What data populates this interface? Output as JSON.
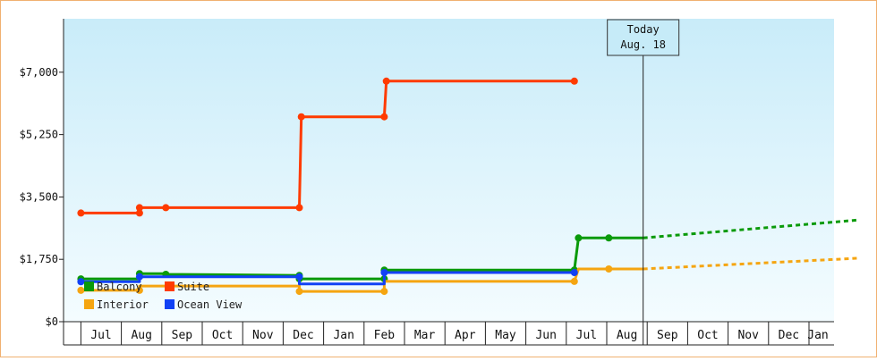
{
  "chart_data": {
    "type": "line",
    "title": "",
    "xlabel": "",
    "ylabel": "",
    "ylim": [
      0,
      8500
    ],
    "yticks": [
      0,
      1750,
      3500,
      5250,
      7000
    ],
    "ytick_labels": [
      "$0",
      "$1,750",
      "$3,500",
      "$5,250",
      "$7,000"
    ],
    "months": [
      "Jul",
      "Aug",
      "Sep",
      "Oct",
      "Nov",
      "Dec",
      "Jan",
      "Feb",
      "Mar",
      "Apr",
      "May",
      "Jun",
      "Jul",
      "Aug",
      "Sep",
      "Oct",
      "Nov",
      "Dec",
      "Jan"
    ],
    "today_label_line1": "Today",
    "today_label_line2": "Aug. 18",
    "today_x": 13.4,
    "legend_position": "bottom-left",
    "grid": false,
    "background": [
      "#c9ecf9",
      "#f4fcff"
    ],
    "series": [
      {
        "name": "Balcony",
        "color": "#0a9a0a",
        "points": [
          [
            -0.5,
            1200
          ],
          [
            0.95,
            1200
          ],
          [
            0.95,
            1350
          ],
          [
            1.6,
            1350
          ],
          [
            1.6,
            1330
          ],
          [
            4.9,
            1300
          ],
          [
            4.9,
            1200
          ],
          [
            7.0,
            1200
          ],
          [
            7.0,
            1450
          ],
          [
            11.7,
            1450
          ],
          [
            11.8,
            2350
          ],
          [
            12.55,
            2350
          ],
          [
            13.4,
            2350
          ]
        ],
        "markers": [
          [
            -0.5,
            1200
          ],
          [
            0.95,
            1350
          ],
          [
            1.6,
            1330
          ],
          [
            4.9,
            1300
          ],
          [
            4.9,
            1200
          ],
          [
            7.0,
            1200
          ],
          [
            7.0,
            1450
          ],
          [
            11.7,
            1450
          ],
          [
            11.8,
            2350
          ],
          [
            12.55,
            2350
          ]
        ],
        "forecast": [
          [
            13.4,
            2350
          ],
          [
            18.7,
            2850
          ]
        ]
      },
      {
        "name": "Suite",
        "color": "#ff3b00",
        "points": [
          [
            -0.5,
            3050
          ],
          [
            0.95,
            3050
          ],
          [
            0.95,
            3200
          ],
          [
            1.6,
            3200
          ],
          [
            4.9,
            3200
          ],
          [
            4.95,
            5750
          ],
          [
            7.0,
            5750
          ],
          [
            7.05,
            6750
          ],
          [
            11.7,
            6750
          ]
        ],
        "markers": [
          [
            -0.5,
            3050
          ],
          [
            0.95,
            3050
          ],
          [
            0.95,
            3200
          ],
          [
            1.6,
            3200
          ],
          [
            4.9,
            3200
          ],
          [
            4.95,
            5750
          ],
          [
            7.0,
            5750
          ],
          [
            7.05,
            6750
          ],
          [
            11.7,
            6750
          ]
        ],
        "forecast": []
      },
      {
        "name": "Interior",
        "color": "#f5a511",
        "points": [
          [
            -0.5,
            880
          ],
          [
            0.95,
            880
          ],
          [
            0.95,
            1000
          ],
          [
            4.9,
            1000
          ],
          [
            4.9,
            850
          ],
          [
            7.0,
            850
          ],
          [
            7.0,
            1130
          ],
          [
            11.7,
            1130
          ],
          [
            11.8,
            1480
          ],
          [
            12.55,
            1480
          ],
          [
            13.4,
            1480
          ]
        ],
        "markers": [
          [
            -0.5,
            880
          ],
          [
            0.95,
            880
          ],
          [
            4.9,
            850
          ],
          [
            7.0,
            850
          ],
          [
            11.7,
            1130
          ],
          [
            12.55,
            1480
          ]
        ],
        "forecast": [
          [
            13.4,
            1480
          ],
          [
            18.7,
            1780
          ]
        ]
      },
      {
        "name": "Ocean View",
        "color": "#1141f5",
        "points": [
          [
            -0.5,
            1120
          ],
          [
            0.95,
            1120
          ],
          [
            0.95,
            1260
          ],
          [
            4.9,
            1260
          ],
          [
            4.9,
            1060
          ],
          [
            7.0,
            1060
          ],
          [
            7.0,
            1380
          ],
          [
            11.7,
            1380
          ]
        ],
        "markers": [
          [
            -0.5,
            1120
          ],
          [
            0.95,
            1260
          ],
          [
            4.9,
            1260
          ],
          [
            7.0,
            1380
          ],
          [
            11.7,
            1380
          ]
        ],
        "forecast": []
      }
    ]
  }
}
